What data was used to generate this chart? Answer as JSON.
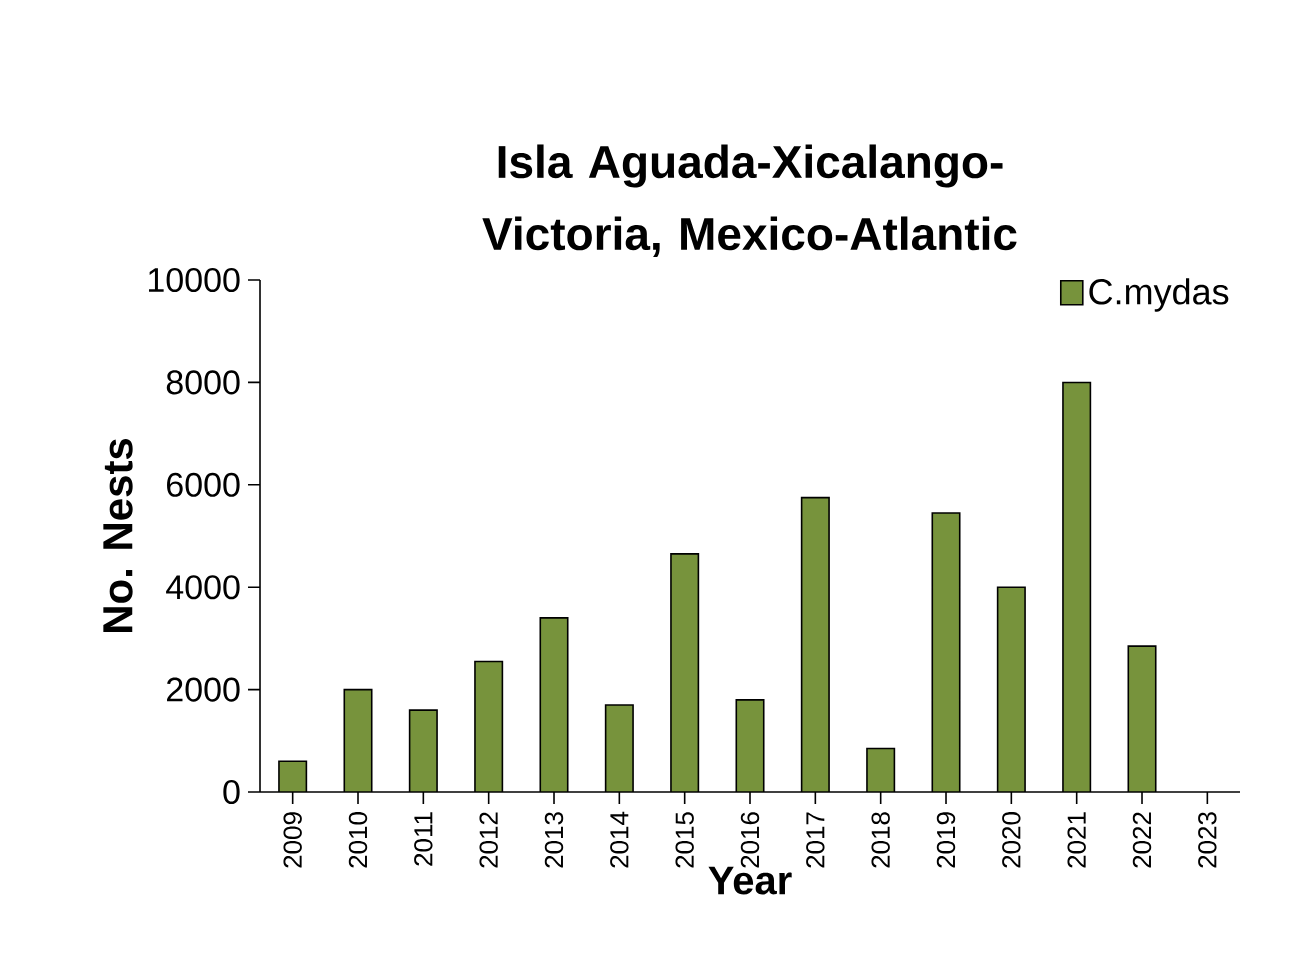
{
  "chart_data": {
    "type": "bar",
    "title": "Isla Aguada-Xicalango-Victoria, Mexico-Atlantic",
    "xlabel": "Year",
    "ylabel": "No. Nests",
    "categories": [
      "2009",
      "2010",
      "2011",
      "2012",
      "2013",
      "2014",
      "2015",
      "2016",
      "2017",
      "2018",
      "2019",
      "2020",
      "2021",
      "2022",
      "2023"
    ],
    "series": [
      {
        "name": "C.mydas",
        "color": "#77933c",
        "values": [
          600,
          2000,
          1600,
          2550,
          3400,
          1700,
          4650,
          1800,
          5750,
          850,
          5450,
          4000,
          8000,
          2850,
          null
        ]
      }
    ],
    "ylim": [
      0,
      10000
    ],
    "yticks": [
      0,
      2000,
      4000,
      6000,
      8000,
      10000
    ],
    "legend": "top right",
    "grid": false
  }
}
